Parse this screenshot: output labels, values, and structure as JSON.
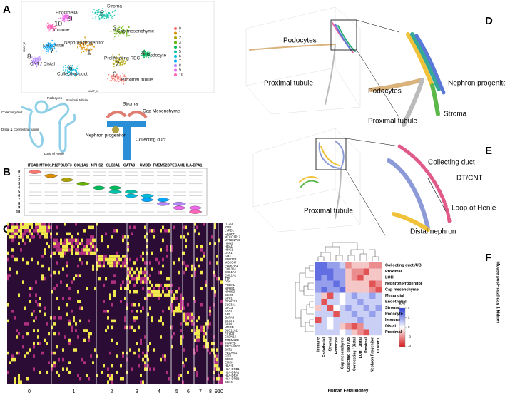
{
  "panel_a": {
    "letter": "A",
    "axis_x": "UMAP_1",
    "axis_y": "UMAP_2",
    "clusters": [
      {
        "id": 9,
        "name": "Endothelial"
      },
      {
        "id": 5,
        "name": "Stroma"
      },
      {
        "id": 10,
        "name": "Immune"
      },
      {
        "id": 3,
        "name": "Cap mesenchyme"
      },
      {
        "id": 1,
        "name": "Nephron progenitor"
      },
      {
        "id": 7,
        "name": "LH / Distal"
      },
      {
        "id": 2,
        "name": "Proliferating RBC"
      },
      {
        "id": 4,
        "name": "Podocyte"
      },
      {
        "id": 8,
        "name": "CNT / Distal"
      },
      {
        "id": 6,
        "name": "Collecting duct"
      },
      {
        "id": 0,
        "name": "Proximal tubule"
      }
    ],
    "legend": [
      0,
      1,
      2,
      3,
      4,
      5,
      6,
      7,
      8,
      9,
      10
    ],
    "colors": [
      "#F8766D",
      "#DB8E00",
      "#AEA200",
      "#64B200",
      "#00BD5C",
      "#00C1A7",
      "#00BADE",
      "#00A6FF",
      "#B385FF",
      "#EF67EB",
      "#FF63B6"
    ],
    "nephron_labels": [
      "Podocytes",
      "Proximal tubule",
      "Collecting duct",
      "Distal & Connecting tubule",
      "Loop of Henle"
    ],
    "niche_labels": [
      "Stroma",
      "Cap Mesenchyme",
      "Nephron progenitor",
      "Collecting duct"
    ]
  },
  "panel_b": {
    "letter": "B",
    "genes": [
      "ITGA8",
      "MTCO1P12",
      "POU3F3",
      "COL1A1",
      "NPHS2",
      "SLC3A1",
      "GATA3",
      "UMOD",
      "TMEM52B",
      "PECAM1",
      "HLA-DPA1"
    ],
    "rows": [
      0,
      1,
      2,
      3,
      4,
      5,
      6,
      7,
      8,
      9,
      10
    ]
  },
  "panel_c": {
    "letter": "C",
    "genes": [
      "ITGA8",
      "IGF2",
      "LYPD1",
      "CENPF",
      "MTCO1P12",
      "MTND1P23",
      "HBG2",
      "HBA1",
      "HBG1",
      "LHX1",
      "SIX1",
      "POU3F3",
      "MECOM",
      "PLEKHA1",
      "COL3A1",
      "COL1A2",
      "COL1A1",
      "TTR",
      "PTN",
      "PODXL",
      "NPHS1",
      "NPHS2",
      "CLIC5",
      "SPP1",
      "GLYATL1",
      "SLC3A1",
      "GPX3",
      "ASS1",
      "AFP",
      "GATA3",
      "BCAT1",
      "SCIN",
      "UMOD",
      "SLC12A1",
      "FXYD2",
      "CLDN16",
      "TMEM52B",
      "TFAP2B",
      "RP11-480I1",
      "SAT1",
      "PECAM1",
      "FLT1",
      "CD93",
      "EMCN",
      "HLA-B",
      "HLA-DRB1",
      "HLA-DPA1",
      "HLA-DRA",
      "HLA-DPB1",
      "CD74"
    ],
    "clusters": [
      0,
      1,
      2,
      3,
      4,
      5,
      6,
      7,
      8,
      9,
      10
    ]
  },
  "panel_d": {
    "letter": "D",
    "overview_labels": [
      "Podocytes",
      "Proximal tubule"
    ],
    "zoom_labels": [
      "Podocytes",
      "Nephron progenitors",
      "Proximal tubule",
      "Stroma"
    ]
  },
  "panel_e": {
    "letter": "E",
    "overview_labels": [
      "Proximal tubule"
    ],
    "zoom_labels": [
      "Collecting duct",
      "DT/CNT",
      "Loop of Henle",
      "Distal nephron"
    ]
  },
  "panel_f": {
    "letter": "F",
    "rows": [
      "Collecting duct /UB",
      "Proximal",
      "LOH",
      "Nephron Progenitor",
      "Cap mesenchyme",
      "Mesangial",
      "Endothelial",
      "Stromal",
      "Podocyte",
      "Immune",
      "Distal",
      "Proximal"
    ],
    "columns": [
      "Immune",
      "Endothelial",
      "Stromal",
      "Podocyte",
      "Cap mesenchyme",
      "Collecting duct /UB",
      "Connecting / Distal",
      "LOH / Distal",
      "Proximal",
      "Nephron Progenitor",
      "Cluster 1"
    ],
    "cells": [
      [
        3,
        3,
        2,
        2,
        1,
        -2,
        -1,
        -1,
        -1,
        -2,
        -2
      ],
      [
        3,
        3,
        3,
        2,
        2,
        -1,
        -2,
        -2,
        -3,
        -1,
        -1
      ],
      [
        3,
        2,
        3,
        2,
        2,
        -1,
        -2,
        -3,
        -1,
        -1,
        -1
      ],
      [
        2,
        2,
        2,
        3,
        2,
        -1,
        -1,
        -1,
        -1,
        -3,
        -2
      ],
      [
        2,
        3,
        2,
        2,
        3,
        -1,
        -1,
        -1,
        -1,
        -2,
        -3
      ],
      [
        1,
        -1,
        -3,
        1,
        0,
        1,
        2,
        1,
        1,
        2,
        1
      ],
      [
        1,
        -3,
        1,
        1,
        0,
        1,
        1,
        2,
        1,
        1,
        1
      ],
      [
        -1,
        1,
        -3,
        0,
        1,
        2,
        1,
        1,
        2,
        1,
        2
      ],
      [
        1,
        1,
        1,
        -3,
        1,
        1,
        2,
        1,
        1,
        2,
        1
      ],
      [
        -3,
        1,
        0,
        1,
        1,
        1,
        1,
        2,
        1,
        1,
        1
      ],
      [
        1,
        1,
        0,
        1,
        -1,
        -2,
        -3,
        -2,
        1,
        1,
        1
      ],
      [
        1,
        1,
        1,
        1,
        0,
        1,
        -1,
        -2,
        -3,
        1,
        1
      ]
    ],
    "key_title": "Key",
    "key_ticks": [
      4,
      2,
      0,
      -2,
      -4
    ],
    "x_title": "Human Fetal kidney",
    "y_title": "Mouse post-natal day 1 kidney"
  }
}
